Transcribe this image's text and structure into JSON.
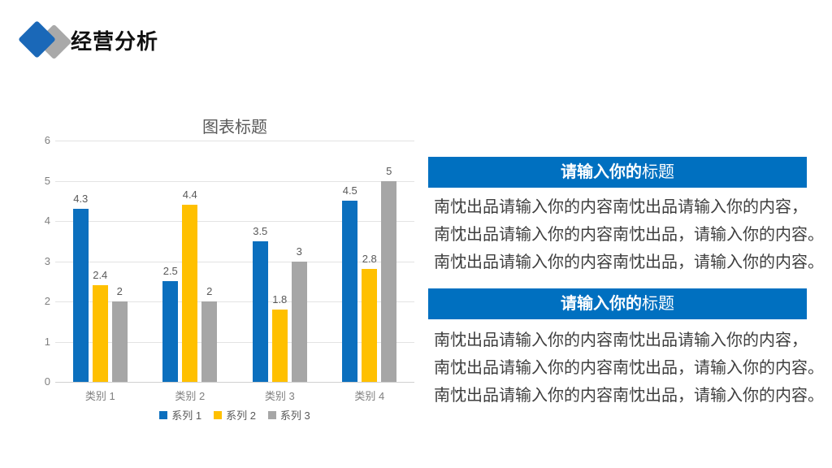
{
  "slide": {
    "title": "经营分析"
  },
  "chart_data": {
    "type": "bar",
    "title": "图表标题",
    "categories": [
      "类别 1",
      "类别 2",
      "类别 3",
      "类别 4"
    ],
    "series": [
      {
        "name": "系列 1",
        "color": "#0B6FBE",
        "values": [
          4.3,
          2.5,
          3.5,
          4.5
        ]
      },
      {
        "name": "系列 2",
        "color": "#FFC000",
        "values": [
          2.4,
          4.4,
          1.8,
          2.8
        ]
      },
      {
        "name": "系列 3",
        "color": "#A6A6A6",
        "values": [
          2,
          2,
          3,
          5
        ]
      }
    ],
    "ylim": [
      0,
      6
    ],
    "y_ticks": [
      0,
      1,
      2,
      3,
      4,
      5,
      6
    ],
    "grid": true,
    "data_labels": true,
    "legend_position": "bottom",
    "xlabel": "",
    "ylabel": ""
  },
  "panels": [
    {
      "title_bold": "请输入你的",
      "title_rest": "标题",
      "lines": [
        "南忱出品请输入你的内容南忱出品请输入你的内容，",
        "南忱出品请输入你的内容南忱出品，请输入你的内容。",
        "南忱出品请输入你的内容南忱出品，请输入你的内容。"
      ]
    },
    {
      "title_bold": "请输入你的",
      "title_rest": "标题",
      "lines": [
        "南忱出品请输入你的内容南忱出品请输入你的内容，",
        "南忱出品请输入你的内容南忱出品，请输入你的内容。",
        "南忱出品请输入你的内容南忱出品，请输入你的内容。"
      ]
    }
  ],
  "colors": {
    "accent_blue": "#0070C0",
    "icon_blue": "#1A68B8",
    "icon_gray": "#A9A9A9",
    "series1": "#0B6FBE",
    "series2": "#FFC000",
    "series3": "#A6A6A6",
    "gridline": "#E3E3E3",
    "axis_text": "#7F7F7F",
    "label_text": "#595959",
    "body_text": "#3F3F3F"
  }
}
